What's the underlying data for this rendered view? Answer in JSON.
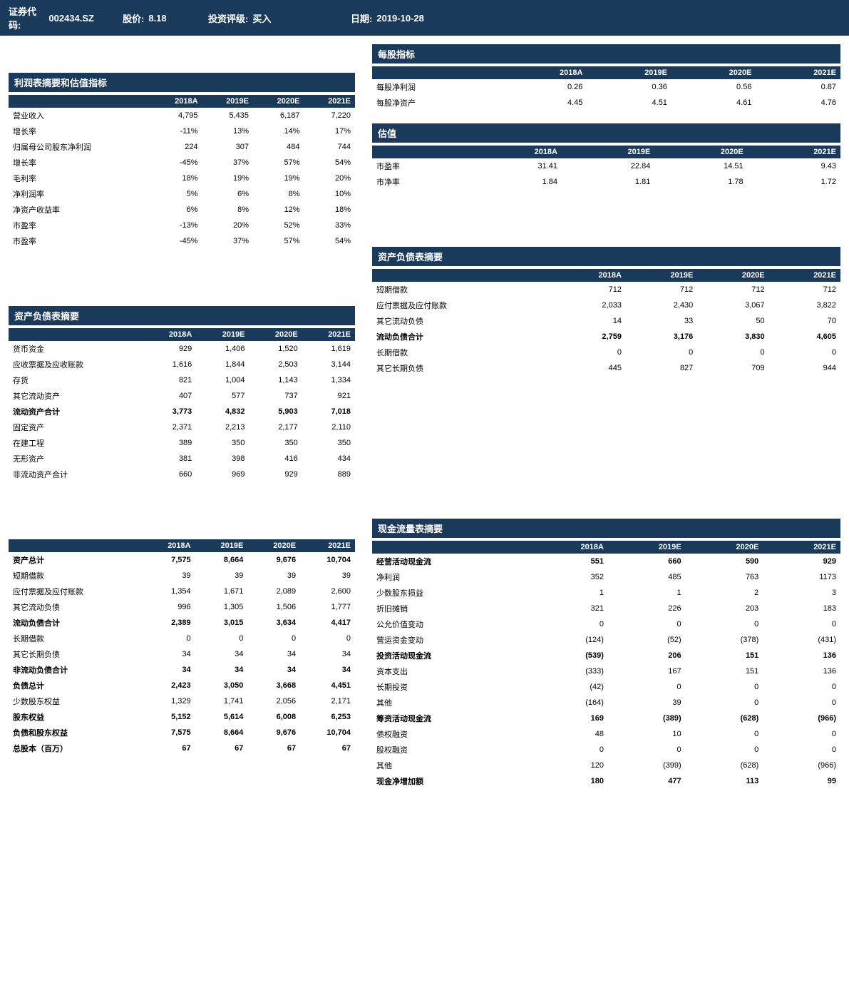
{
  "header": {
    "code_label": "证券代码:",
    "code_value": "002434.SZ",
    "price_label": "股价:",
    "price_value": "8.18",
    "rating_label": "投资评级:",
    "rating_value": "买入",
    "date_label": "日期:",
    "date_value": "2019-10-28"
  },
  "income_statement": {
    "title": "利润表摘要和估值指标",
    "years": [
      "2018A",
      "2019E",
      "2020E",
      "2021E"
    ],
    "rows": [
      {
        "label": "营业收入",
        "values": [
          "4,795",
          "5,435",
          "6,187",
          "7,220"
        ]
      },
      {
        "label": "增长率",
        "values": [
          "-11%",
          "13%",
          "14%",
          "17%"
        ]
      },
      {
        "label": "归属母公司股东净利润",
        "values": [
          "224",
          "307",
          "484",
          "744"
        ]
      },
      {
        "label": "增长率",
        "values": [
          "-45%",
          "37%",
          "57%",
          "54%"
        ]
      },
      {
        "label": "毛利率",
        "values": [
          "18%",
          "19%",
          "19%",
          "20%"
        ]
      },
      {
        "label": "净利润率",
        "values": [
          "5%",
          "6%",
          "8%",
          "10%"
        ]
      },
      {
        "label": "净资产收益率",
        "values": [
          "6%",
          "8%",
          "12%",
          "18%"
        ]
      },
      {
        "label": "市盈率",
        "values": [
          "-13%",
          "20%",
          "52%",
          "33%"
        ]
      },
      {
        "label": "市盈率",
        "values": [
          "-45%",
          "37%",
          "57%",
          "54%"
        ]
      }
    ]
  },
  "per_share": {
    "title": "每股指标",
    "years": [
      "2018A",
      "2019E",
      "2020E",
      "2021E"
    ],
    "rows": [
      {
        "label": "每股净利润",
        "values": [
          "0.26",
          "0.36",
          "0.56",
          "0.87"
        ]
      },
      {
        "label": "每股净资产",
        "values": [
          "4.45",
          "4.51",
          "4.61",
          "4.76"
        ]
      }
    ]
  },
  "valuation": {
    "title": "估值",
    "years": [
      "2018A",
      "2019E",
      "2020E",
      "2021E"
    ],
    "rows": [
      {
        "label": "市盈率",
        "values": [
          "31.41",
          "22.84",
          "14.51",
          "9.43"
        ]
      },
      {
        "label": "市净率",
        "values": [
          "1.84",
          "1.81",
          "1.78",
          "1.72"
        ]
      }
    ]
  },
  "balance_sheet_left": {
    "title": "资产负债表摘要",
    "years": [
      "2018A",
      "2019E",
      "2020E",
      "2021E"
    ],
    "rows": [
      {
        "label": "货币资金",
        "values": [
          "929",
          "1,406",
          "1,520",
          "1,619"
        ],
        "bold": false
      },
      {
        "label": "应收票据及应收账款",
        "values": [
          "1,616",
          "1,844",
          "2,503",
          "3,144"
        ],
        "bold": false
      },
      {
        "label": "存货",
        "values": [
          "821",
          "1,004",
          "1,143",
          "1,334"
        ],
        "bold": false
      },
      {
        "label": "其它流动资产",
        "values": [
          "407",
          "577",
          "737",
          "921"
        ],
        "bold": false
      },
      {
        "label": "流动资产合计",
        "values": [
          "3,773",
          "4,832",
          "5,903",
          "7,018"
        ],
        "bold": true
      },
      {
        "label": "固定资产",
        "values": [
          "2,371",
          "2,213",
          "2,177",
          "2,110"
        ],
        "bold": false
      },
      {
        "label": "在建工程",
        "values": [
          "389",
          "350",
          "350",
          "350"
        ],
        "bold": false
      },
      {
        "label": "无形资产",
        "values": [
          "381",
          "398",
          "416",
          "434"
        ],
        "bold": false
      },
      {
        "label": "非流动资产合计",
        "values": [
          "660",
          "969",
          "929",
          "889"
        ],
        "bold": false
      }
    ]
  },
  "balance_sheet_right": {
    "title": "资产负债表摘要",
    "years": [
      "2018A",
      "2019E",
      "2020E",
      "2021E"
    ],
    "rows": [
      {
        "label": "短期借款",
        "values": [
          "712",
          "712",
          "712",
          "712"
        ],
        "bold": false
      },
      {
        "label": "应付票据及应付账款",
        "values": [
          "2,033",
          "2,430",
          "3,067",
          "3,822"
        ],
        "bold": false
      },
      {
        "label": "其它流动负债",
        "values": [
          "14",
          "33",
          "50",
          "70"
        ],
        "bold": false
      },
      {
        "label": "流动负债合计",
        "values": [
          "2,759",
          "3,176",
          "3,830",
          "4,605"
        ],
        "bold": true
      },
      {
        "label": "长期借款",
        "values": [
          "0",
          "0",
          "0",
          "0"
        ],
        "bold": false
      },
      {
        "label": "其它长期负债",
        "values": [
          "445",
          "827",
          "709",
          "944"
        ],
        "bold": false
      }
    ]
  },
  "equity_left": {
    "years": [
      "2018A",
      "2019E",
      "2020E",
      "2021E"
    ],
    "rows": [
      {
        "label": "资产总计",
        "values": [
          "7,575",
          "8,664",
          "9,676",
          "10,704"
        ],
        "bold": true
      },
      {
        "label": "短期借款",
        "values": [
          "39",
          "39",
          "39",
          "39"
        ],
        "bold": false
      },
      {
        "label": "应付票据及应付账款",
        "values": [
          "1,354",
          "1,671",
          "2,089",
          "2,600"
        ],
        "bold": false
      },
      {
        "label": "其它流动负债",
        "values": [
          "996",
          "1,305",
          "1,506",
          "1,777"
        ],
        "bold": false
      },
      {
        "label": "流动负债合计",
        "values": [
          "2,389",
          "3,015",
          "3,634",
          "4,417"
        ],
        "bold": true
      },
      {
        "label": "长期借款",
        "values": [
          "0",
          "0",
          "0",
          "0"
        ],
        "bold": false
      },
      {
        "label": "其它长期负债",
        "values": [
          "34",
          "34",
          "34",
          "34"
        ],
        "bold": false
      },
      {
        "label": "非流动负债合计",
        "values": [
          "34",
          "34",
          "34",
          "34"
        ],
        "bold": true
      },
      {
        "label": "负债总计",
        "values": [
          "2,423",
          "3,050",
          "3,668",
          "4,451"
        ],
        "bold": true
      },
      {
        "label": "少数股东权益",
        "values": [
          "1,329",
          "1,741",
          "2,056",
          "2,171"
        ],
        "bold": false
      },
      {
        "label": "股东权益",
        "values": [
          "5,152",
          "5,614",
          "6,008",
          "6,253"
        ],
        "bold": true
      },
      {
        "label": "负债和股东权益",
        "values": [
          "7,575",
          "8,664",
          "9,676",
          "10,704"
        ],
        "bold": true
      },
      {
        "label": "总股本（百万）",
        "values": [
          "67",
          "67",
          "67",
          "67"
        ],
        "bold": true
      }
    ]
  },
  "cash_flow": {
    "title": "现金流量表摘要",
    "years": [
      "2018A",
      "2019E",
      "2020E",
      "2021E"
    ],
    "rows": [
      {
        "label": "经营活动现金流",
        "values": [
          "551",
          "660",
          "590",
          "929"
        ],
        "bold": true
      },
      {
        "label": "净利润",
        "values": [
          "352",
          "485",
          "763",
          "1173"
        ],
        "bold": false
      },
      {
        "label": "少数股东损益",
        "values": [
          "1",
          "1",
          "2",
          "3"
        ],
        "bold": false
      },
      {
        "label": "折旧摊销",
        "values": [
          "321",
          "226",
          "203",
          "183"
        ],
        "bold": false
      },
      {
        "label": "公允价值变动",
        "values": [
          "0",
          "0",
          "0",
          "0"
        ],
        "bold": false
      },
      {
        "label": "营运资金变动",
        "values": [
          "(124)",
          "(52)",
          "(378)",
          "(431)"
        ],
        "bold": false
      },
      {
        "label": "投资活动现金流",
        "values": [
          "(539)",
          "206",
          "151",
          "136"
        ],
        "bold": true
      },
      {
        "label": "资本支出",
        "values": [
          "(333)",
          "167",
          "151",
          "136"
        ],
        "bold": false
      },
      {
        "label": "长期投资",
        "values": [
          "(42)",
          "0",
          "0",
          "0"
        ],
        "bold": false
      },
      {
        "label": "其他",
        "values": [
          "(164)",
          "39",
          "0",
          "0"
        ],
        "bold": false
      },
      {
        "label": "筹资活动现金流",
        "values": [
          "169",
          "(389)",
          "(628)",
          "(966)"
        ],
        "bold": true
      },
      {
        "label": "债权融资",
        "values": [
          "48",
          "10",
          "0",
          "0"
        ],
        "bold": false
      },
      {
        "label": "股权融资",
        "values": [
          "0",
          "0",
          "0",
          "0"
        ],
        "bold": false
      },
      {
        "label": "其他",
        "values": [
          "120",
          "(399)",
          "(628)",
          "(966)"
        ],
        "bold": false
      },
      {
        "label": "现金净增加额",
        "values": [
          "180",
          "477",
          "113",
          "99"
        ],
        "bold": true
      }
    ]
  },
  "colors": {
    "header_bg": "#1a3a5c",
    "header_text": "#ffffff",
    "body_bg": "#ffffff"
  }
}
